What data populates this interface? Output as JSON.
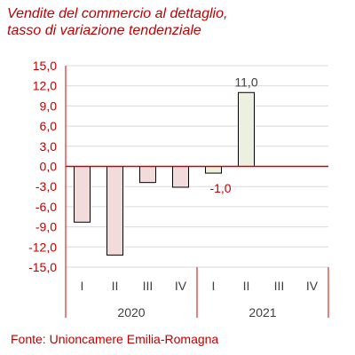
{
  "header": {
    "title_line1": "Vendite del commercio al dettaglio,",
    "title_line2": "tasso di variazione tendenziale"
  },
  "footer": {
    "source": "Fonte: Unioncamere Emilia-Romagna"
  },
  "colors": {
    "text": "#c00000",
    "axis": "#d00000",
    "grid": "#d9d9d9",
    "bar_2020": "#f2dcdb",
    "bar_2021": "#ebf1de",
    "bar_outline": "#000000",
    "data_label_negative": "#c00000",
    "data_label_positive": "#404040"
  },
  "chart_data": {
    "type": "bar",
    "title": "Vendite del commercio al dettaglio, tasso di variazione tendenziale",
    "categories": [
      "I",
      "II",
      "III",
      "IV",
      "I",
      "II",
      "III",
      "IV"
    ],
    "groups": [
      {
        "label": "2020",
        "categories": [
          "I",
          "II",
          "III",
          "IV"
        ]
      },
      {
        "label": "2021",
        "categories": [
          "I",
          "II",
          "III",
          "IV"
        ]
      }
    ],
    "values": [
      -8.3,
      -13.2,
      -2.4,
      -3.1,
      -1.0,
      11.0,
      null,
      null
    ],
    "data_labels": [
      null,
      null,
      null,
      null,
      "-1,0",
      "11,0",
      null,
      null
    ],
    "ylim": [
      -15,
      15
    ],
    "yticks": [
      15,
      12,
      9,
      6,
      3,
      0,
      -3,
      -6,
      -9,
      -12,
      -15
    ],
    "ytick_labels": [
      "15,0",
      "12,0",
      "9,0",
      "6,0",
      "3,0",
      "0,0",
      "-3,0",
      "-6,0",
      "-9,0",
      "-12,0",
      "-15,0"
    ],
    "grid": true,
    "xlabel": "",
    "ylabel": ""
  }
}
